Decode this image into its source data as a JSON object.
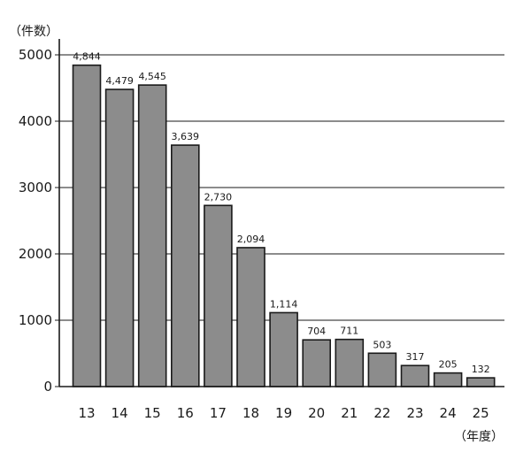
{
  "chart_data": {
    "type": "bar",
    "y_unit_label": "（件数）",
    "x_unit_label": "（年度）",
    "categories": [
      "13",
      "14",
      "15",
      "16",
      "17",
      "18",
      "19",
      "20",
      "21",
      "22",
      "23",
      "24",
      "25"
    ],
    "values": [
      4844,
      4479,
      4545,
      3639,
      2730,
      2094,
      1114,
      704,
      711,
      503,
      317,
      205,
      132
    ],
    "data_labels": [
      "4,844",
      "4,479",
      "4,545",
      "3,639",
      "2,730",
      "2,094",
      "1,114",
      "704",
      "711",
      "503",
      "317",
      "205",
      "132"
    ],
    "ylim": [
      0,
      5000
    ],
    "yticks": [
      0,
      1000,
      2000,
      3000,
      4000,
      5000
    ],
    "grid": true,
    "bar_color": "#8c8c8c",
    "bar_edge_color": "#1a1a1a"
  }
}
